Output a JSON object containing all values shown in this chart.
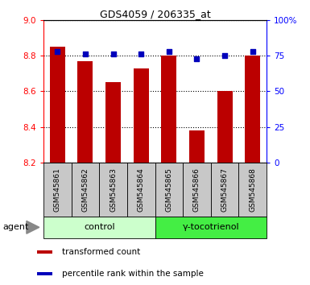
{
  "title": "GDS4059 / 206335_at",
  "samples": [
    "GSM545861",
    "GSM545862",
    "GSM545863",
    "GSM545864",
    "GSM545865",
    "GSM545866",
    "GSM545867",
    "GSM545868"
  ],
  "bar_values": [
    8.85,
    8.77,
    8.65,
    8.73,
    8.8,
    8.38,
    8.6,
    8.8
  ],
  "percentile_values": [
    78,
    76,
    76,
    76,
    78,
    73,
    75,
    78
  ],
  "bar_color": "#bb0000",
  "dot_color": "#0000bb",
  "ylim_left": [
    8.2,
    9.0
  ],
  "ylim_right": [
    0,
    100
  ],
  "yticks_left": [
    8.2,
    8.4,
    8.6,
    8.8,
    9.0
  ],
  "yticks_right": [
    0,
    25,
    50,
    75,
    100
  ],
  "ytick_labels_right": [
    "0",
    "25",
    "50",
    "75",
    "100%"
  ],
  "groups": [
    {
      "label": "control",
      "indices": [
        0,
        1,
        2,
        3
      ],
      "color": "#ccffcc"
    },
    {
      "label": "γ-tocotrienol",
      "indices": [
        4,
        5,
        6,
        7
      ],
      "color": "#44ee44"
    }
  ],
  "agent_label": "agent",
  "legend_bar_label": "transformed count",
  "legend_dot_label": "percentile rank within the sample",
  "bar_width": 0.55,
  "sample_box_color": "#c8c8c8"
}
